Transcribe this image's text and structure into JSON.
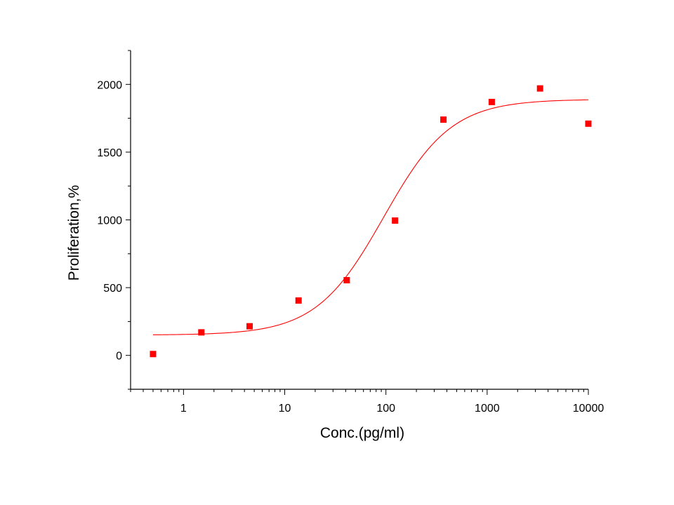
{
  "chart_data": {
    "type": "scatter",
    "title": "",
    "xlabel": "Conc.(pg/ml)",
    "ylabel": "Proliferation,%",
    "xscale": "log",
    "xlim": [
      0.3,
      10000
    ],
    "ylim": [
      -250,
      2250
    ],
    "x_ticks": [
      {
        "value": 1,
        "label": "1"
      },
      {
        "value": 10,
        "label": "10"
      },
      {
        "value": 100,
        "label": "100"
      },
      {
        "value": 1000,
        "label": "1000"
      },
      {
        "value": 10000,
        "label": "10000"
      }
    ],
    "y_ticks": [
      {
        "value": 0,
        "label": "0"
      },
      {
        "value": 500,
        "label": "500"
      },
      {
        "value": 1000,
        "label": "1000"
      },
      {
        "value": 1500,
        "label": "1500"
      },
      {
        "value": 2000,
        "label": "2000"
      }
    ],
    "grid": false,
    "legend": "none",
    "series": [
      {
        "marker": "square",
        "color": "#ff0000",
        "points": [
          {
            "x": 0.5,
            "y": 10
          },
          {
            "x": 1.5,
            "y": 170
          },
          {
            "x": 4.5,
            "y": 215
          },
          {
            "x": 13.7,
            "y": 405
          },
          {
            "x": 41,
            "y": 555
          },
          {
            "x": 123,
            "y": 995
          },
          {
            "x": 370,
            "y": 1740
          },
          {
            "x": 1111,
            "y": 1870
          },
          {
            "x": 3333,
            "y": 1970
          },
          {
            "x": 10000,
            "y": 1710
          }
        ]
      }
    ],
    "fit_curve": {
      "type": "4PL",
      "color": "#ff0000",
      "x_range": [
        0.5,
        10000
      ],
      "bottom": 150,
      "top": 1890,
      "ec50": 95,
      "hill": 1.3
    }
  }
}
